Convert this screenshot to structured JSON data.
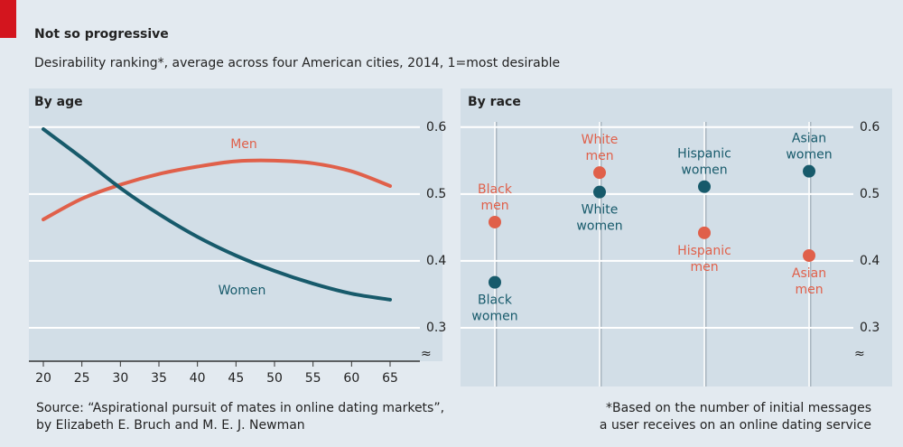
{
  "header": {
    "title": "Not so progressive",
    "subtitle": "Desirability ranking*, average across four American cities, 2014, 1=most desirable"
  },
  "chart_data": [
    {
      "type": "line",
      "title": "By age",
      "x": [
        20,
        25,
        30,
        35,
        40,
        45,
        50,
        55,
        60,
        65
      ],
      "series": [
        {
          "name": "Men",
          "color": "#e0604a",
          "values": [
            0.462,
            0.493,
            0.514,
            0.53,
            0.541,
            0.549,
            0.55,
            0.546,
            0.534,
            0.512
          ]
        },
        {
          "name": "Women",
          "color": "#175a6b",
          "values": [
            0.597,
            0.554,
            0.509,
            0.47,
            0.436,
            0.408,
            0.385,
            0.366,
            0.351,
            0.342
          ]
        }
      ],
      "xlim": [
        20,
        65
      ],
      "xticks": [
        20,
        25,
        30,
        35,
        40,
        45,
        50,
        55,
        60,
        65
      ],
      "ylim": [
        0.25,
        0.62
      ],
      "yticks": [
        0.3,
        0.4,
        0.5,
        0.6
      ],
      "grid": true
    },
    {
      "type": "dot",
      "title": "By race",
      "series": [
        {
          "name": "Men",
          "color": "#e0604a",
          "labels": [
            "Black men",
            "White men",
            "Hispanic men",
            "Asian men"
          ],
          "values": [
            0.458,
            0.532,
            0.442,
            0.408
          ]
        },
        {
          "name": "Women",
          "color": "#175a6b",
          "labels": [
            "Black women",
            "White women",
            "Hispanic women",
            "Asian women"
          ],
          "values": [
            0.368,
            0.503,
            0.511,
            0.534
          ]
        }
      ],
      "ylim": [
        0.25,
        0.62
      ],
      "yticks": [
        0.3,
        0.4,
        0.5,
        0.6
      ],
      "grid": true
    }
  ],
  "footer": {
    "source": [
      "Source: “Aspirational pursuit of mates in online dating markets”,",
      "by Elizabeth E. Bruch and M. E. J. Newman"
    ],
    "note": [
      "*Based on the number of initial messages",
      "a user receives on an online dating service"
    ]
  }
}
